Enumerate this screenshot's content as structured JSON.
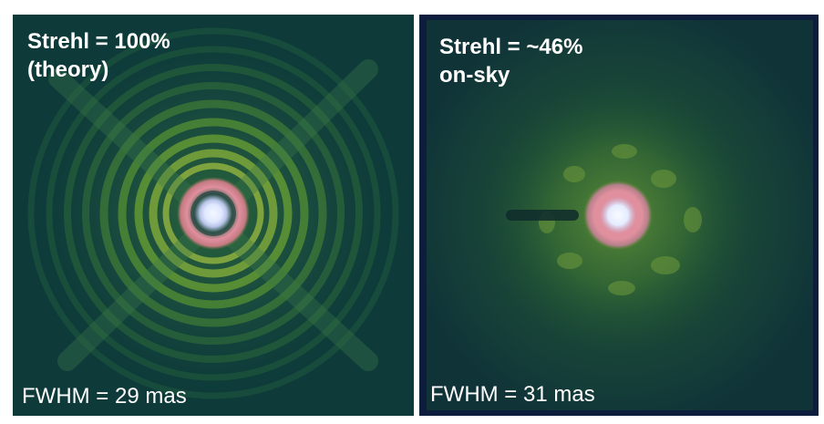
{
  "panels": {
    "left": {
      "title_line_1": "Strehl = 100%",
      "title_line_2": "(theory)",
      "fwhm": "FWHM = 29 mas",
      "strehl_percent": 100
    },
    "right": {
      "title_line_1": "Strehl = ~46%",
      "title_line_2": "on-sky",
      "fwhm": "FWHM = 31 mas",
      "strehl_percent": 46
    }
  },
  "colors": {
    "left_background": "#0e3b3a",
    "right_background": "#0d1d3c",
    "halo": "#2c6a2e",
    "ring_green": "#6f9a3a",
    "core_pink": "#d98a9a",
    "core_white": "#f4f8ff",
    "text": "#ffffff"
  }
}
